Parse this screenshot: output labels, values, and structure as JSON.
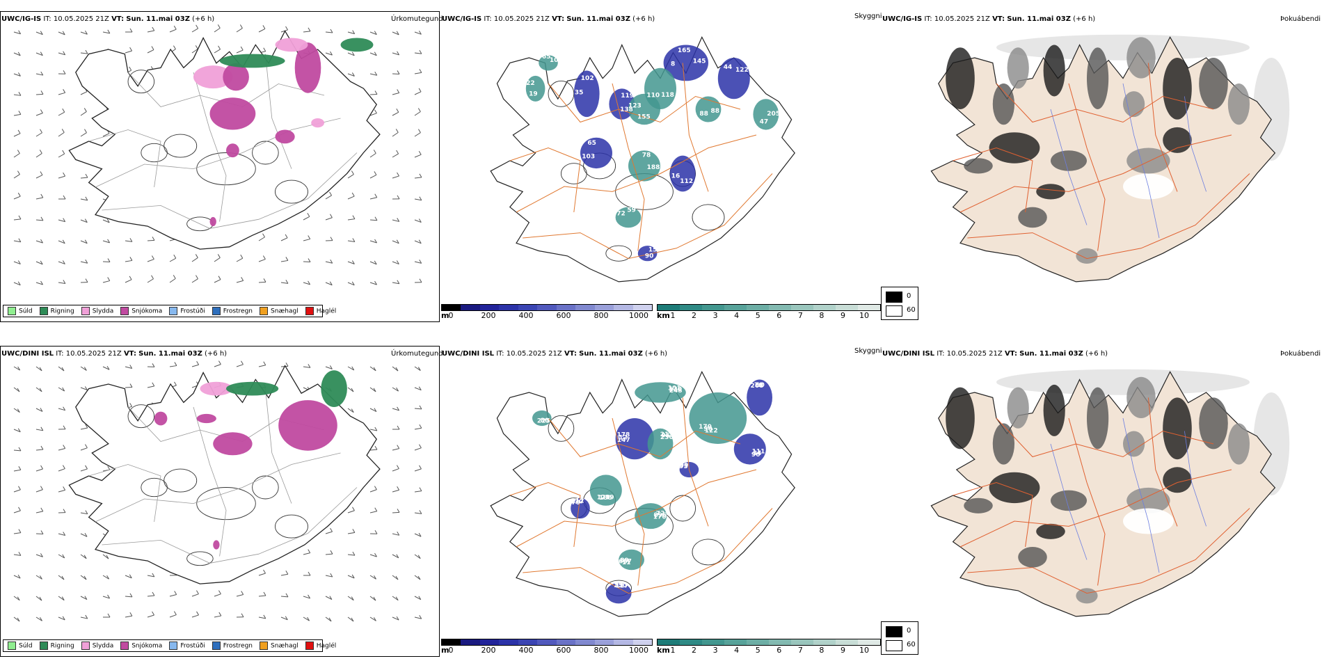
{
  "rows": [
    {
      "model": "UWC/IG-IS",
      "it_label": "IT:",
      "it_value": "10.05.2025 21Z",
      "vt_label": "VT:",
      "vt_value": "Sun. 11.mai 03Z",
      "lead": "(+6 h)"
    },
    {
      "model": "UWC/DINI ISL",
      "it_label": "IT:",
      "it_value": "10.05.2025 21Z",
      "vt_label": "VT:",
      "vt_value": "Sun. 11.mai 03Z",
      "lead": "(+6 h)"
    }
  ],
  "panel_kinds": {
    "precip_type": "Úrkomutegund",
    "visibility": "Skyggni",
    "fog": "Þokuábendi"
  },
  "precip_legend": [
    {
      "label": "Súld",
      "color": "#90ee90"
    },
    {
      "label": "Rigning",
      "color": "#2e8b57"
    },
    {
      "label": "Slydda",
      "color": "#f0a0d8"
    },
    {
      "label": "Snjókoma",
      "color": "#c04aa0"
    },
    {
      "label": "Frostúði",
      "color": "#87b8ee"
    },
    {
      "label": "Frostregn",
      "color": "#2e6fbd"
    },
    {
      "label": "Snæhagl",
      "color": "#f0a020"
    },
    {
      "label": "Haglél",
      "color": "#e01010"
    }
  ],
  "visibility_m": {
    "unit": "m",
    "ticks": [
      "0",
      "200",
      "400",
      "600",
      "800",
      "1000"
    ],
    "colors": [
      "#000000",
      "#1a1a80",
      "#22249a",
      "#2c33a8",
      "#3b45b3",
      "#5159bd",
      "#6a72c7",
      "#8189d0",
      "#9aa0da",
      "#b4b8e4",
      "#cfd1ee"
    ]
  },
  "visibility_km": {
    "unit": "km",
    "ticks": [
      "1",
      "2",
      "3",
      "4",
      "5",
      "6",
      "7",
      "8",
      "9",
      "10"
    ],
    "colors": [
      "#1e7c78",
      "#2f8a85",
      "#43978f",
      "#58a39a",
      "#6daea5",
      "#83bab1",
      "#9ac6bd",
      "#b1d2ca",
      "#c8ddd6",
      "#dfe9e5"
    ]
  },
  "fog_legend": {
    "high_label": "0",
    "low_label": "60",
    "high_color": "#000000",
    "low_color": "#ffffff"
  },
  "colors": {
    "land": "#f2e4d6",
    "roads": "#e07830",
    "rivers": "#6c7ee0"
  },
  "row1_labels": [
    "145",
    "110",
    "102",
    "138",
    "123",
    "122",
    "47",
    "65",
    "188",
    "16",
    "59",
    "90",
    "22",
    "10",
    "88",
    "165",
    "118",
    "35",
    "119",
    "155",
    "44",
    "205",
    "103",
    "78",
    "112",
    "72",
    "15",
    "19",
    "65",
    "88",
    "8"
  ],
  "row2_labels": [
    "248",
    "170",
    "10",
    "96",
    "178",
    "236",
    "123",
    "212",
    "170",
    "89",
    "117",
    "225",
    "99",
    "130",
    "90",
    "76",
    "34",
    "12",
    "95",
    "186",
    "330",
    "896",
    "667",
    "230",
    "80",
    "95",
    "101",
    "122",
    "268",
    "111",
    "147",
    "21",
    "219",
    "70",
    "72",
    "11",
    "59"
  ]
}
